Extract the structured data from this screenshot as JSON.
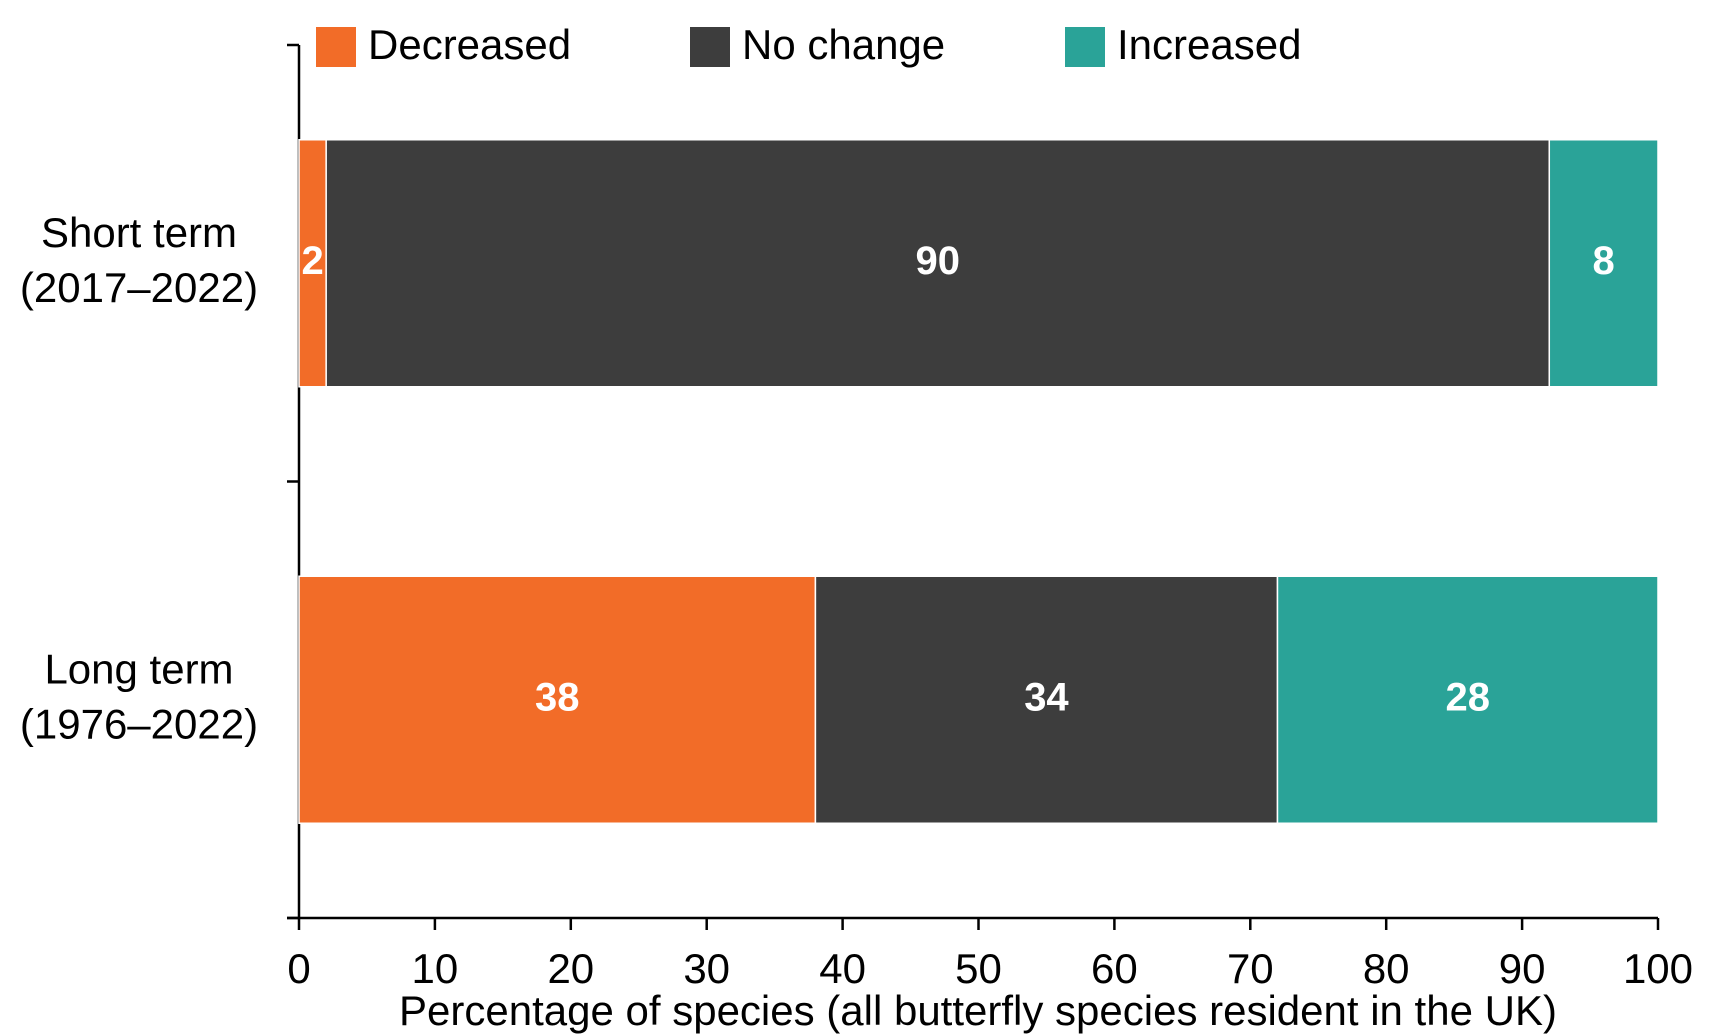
{
  "chart_data": {
    "type": "stacked-bar-horizontal",
    "x_label": "Percentage of species (all butterfly species resident in the UK)",
    "categories": [
      "Short term\n(2017–2022)",
      "Long term\n(1976–2022)"
    ],
    "series": [
      {
        "name": "Decreased",
        "color": "#f26c28",
        "values": [
          2,
          38
        ]
      },
      {
        "name": "No change",
        "color": "#3d3d3d",
        "values": [
          90,
          34
        ]
      },
      {
        "name": "Increased",
        "color": "#2aa398",
        "values": [
          8,
          28
        ]
      }
    ],
    "xlim": [
      0,
      100
    ],
    "xticks": [
      0,
      10,
      20,
      30,
      40,
      50,
      60,
      70,
      80,
      90,
      100
    ],
    "legend": "top"
  }
}
